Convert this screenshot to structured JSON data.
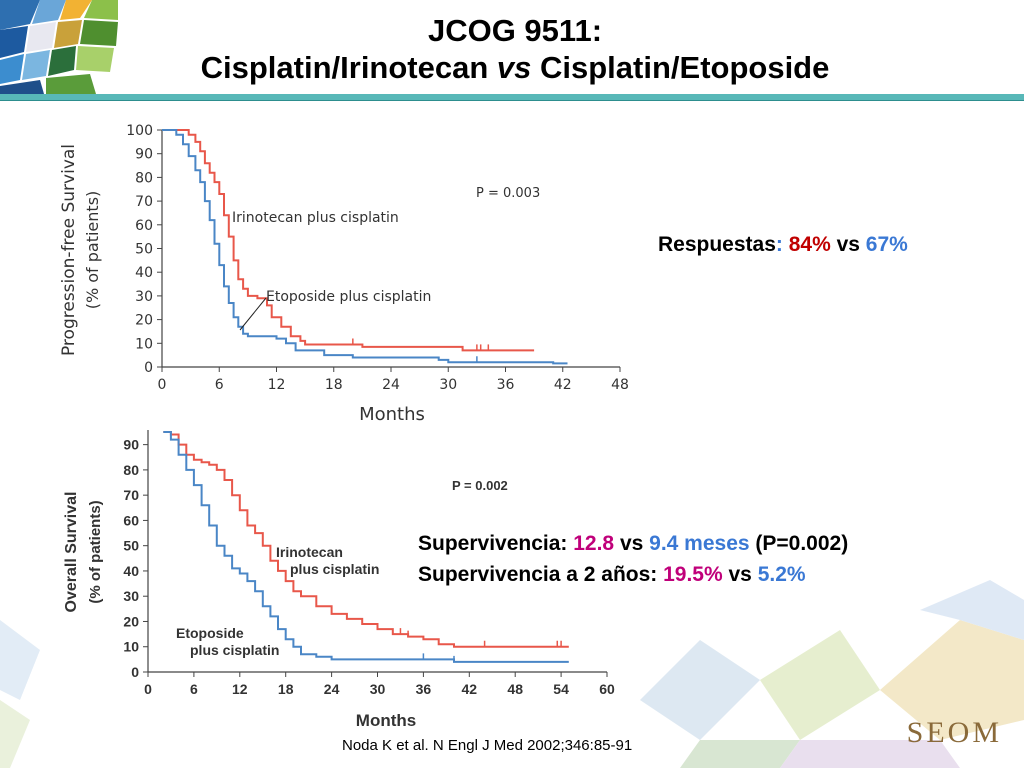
{
  "title": {
    "line1": "JCOG 9511:",
    "line2_a": "Cisplatin/Irinotecan ",
    "line2_vs": "vs",
    "line2_b": " Cisplatin/Etoposide"
  },
  "stats": {
    "respuestas": {
      "label": "Respuestas",
      "colon": ":",
      "value1": "84%",
      "vs": " vs ",
      "value2": "67%"
    },
    "supervivencia": {
      "label": "Supervivencia: ",
      "value1": "12.8",
      "vs": " vs ",
      "value2": "9.4 meses",
      "pvalue": " (P=0.002)"
    },
    "supervivencia2": {
      "label": "Supervivencia a 2 años: ",
      "value1": "19.5%",
      "vs": " vs ",
      "value2": "5.2%"
    }
  },
  "citation": "Noda K et al. N Engl J Med 2002;346:85-91",
  "logo_text": "SEOM",
  "colors": {
    "irinotecan": "#e8574a",
    "etoposide": "#4a86c6",
    "accent_teal": "#58b8b8",
    "stat_red": "#c00000",
    "stat_blue": "#3a78d4",
    "stat_magenta": "#c0007a"
  },
  "chart_data": [
    {
      "type": "line",
      "ylabel_line1": "Progression-free Survival",
      "ylabel_line2": "(% of patients)",
      "xlabel": "Months",
      "xlim": [
        0,
        48
      ],
      "ylim": [
        0,
        100
      ],
      "xticks": [
        0,
        6,
        12,
        18,
        24,
        30,
        36,
        42,
        48
      ],
      "yticks": [
        0,
        10,
        20,
        30,
        40,
        50,
        60,
        70,
        80,
        90,
        100
      ],
      "annotation_p": "P = 0.003",
      "series": [
        {
          "name": "Irinotecan plus cisplatin",
          "color": "#e8574a",
          "points": [
            [
              0,
              100
            ],
            [
              2,
              100
            ],
            [
              2.8,
              98
            ],
            [
              3.5,
              95
            ],
            [
              4,
              91
            ],
            [
              4.5,
              86
            ],
            [
              5,
              82
            ],
            [
              5.5,
              78
            ],
            [
              6,
              73
            ],
            [
              6.5,
              64
            ],
            [
              7,
              55
            ],
            [
              7.5,
              45
            ],
            [
              8,
              37
            ],
            [
              8.5,
              33
            ],
            [
              9,
              30
            ],
            [
              10,
              29
            ],
            [
              11,
              26
            ],
            [
              11.5,
              21
            ],
            [
              12.5,
              17
            ],
            [
              13.5,
              13
            ],
            [
              14.5,
              11
            ],
            [
              15,
              9.5
            ],
            [
              20,
              9.5
            ],
            [
              21,
              8.5
            ],
            [
              31,
              8.5
            ],
            [
              31.5,
              7
            ],
            [
              39,
              7
            ]
          ],
          "censor_x": [
            20,
            33,
            33.4,
            34.2
          ]
        },
        {
          "name": "Etoposide plus cisplatin",
          "color": "#4a86c6",
          "points": [
            [
              0,
              100
            ],
            [
              1.5,
              98
            ],
            [
              2.2,
              94
            ],
            [
              2.8,
              89
            ],
            [
              3.5,
              83
            ],
            [
              4,
              78
            ],
            [
              4.5,
              70
            ],
            [
              5,
              62
            ],
            [
              5.5,
              52
            ],
            [
              6,
              43
            ],
            [
              6.5,
              34
            ],
            [
              7,
              27
            ],
            [
              7.5,
              21
            ],
            [
              8,
              17
            ],
            [
              8.5,
              14
            ],
            [
              9,
              13
            ],
            [
              12,
              12
            ],
            [
              13,
              10
            ],
            [
              14,
              7
            ],
            [
              17,
              5
            ],
            [
              20,
              4
            ],
            [
              29,
              3
            ],
            [
              30,
              2
            ],
            [
              40,
              2
            ],
            [
              41,
              1.5
            ],
            [
              42.5,
              1.5
            ]
          ],
          "censor_x": [
            33
          ]
        }
      ],
      "series_label_irinotecan": "Irinotecan plus cisplatin",
      "series_label_etoposide": "Etoposide plus cisplatin"
    },
    {
      "type": "line",
      "ylabel_line1": "Overall Survival",
      "ylabel_line2": "(% of patients)",
      "xlabel": "Months",
      "xlim": [
        0,
        60
      ],
      "ylim": [
        0,
        95
      ],
      "xticks": [
        0,
        6,
        12,
        18,
        24,
        30,
        36,
        42,
        48,
        54,
        60
      ],
      "yticks": [
        0,
        10,
        20,
        30,
        40,
        50,
        60,
        70,
        80,
        90
      ],
      "annotation_p": "P = 0.002",
      "series": [
        {
          "name": "Irinotecan plus cisplatin",
          "color": "#e8574a",
          "points": [
            [
              2,
              95
            ],
            [
              3,
              94
            ],
            [
              4,
              90
            ],
            [
              5,
              86
            ],
            [
              6,
              84
            ],
            [
              7,
              83
            ],
            [
              8,
              82
            ],
            [
              9,
              80
            ],
            [
              10,
              76
            ],
            [
              11,
              70
            ],
            [
              12,
              64
            ],
            [
              13,
              58
            ],
            [
              14,
              55
            ],
            [
              15,
              50
            ],
            [
              16,
              44
            ],
            [
              17,
              40
            ],
            [
              18,
              36
            ],
            [
              19,
              32
            ],
            [
              20,
              30
            ],
            [
              22,
              26
            ],
            [
              24,
              23
            ],
            [
              26,
              21
            ],
            [
              28,
              19
            ],
            [
              30,
              17
            ],
            [
              32,
              15
            ],
            [
              34,
              14
            ],
            [
              36,
              13
            ],
            [
              38,
              11
            ],
            [
              40,
              10
            ],
            [
              50,
              10
            ],
            [
              55,
              10
            ]
          ],
          "censor_x": [
            33,
            34,
            44,
            53.5,
            54
          ]
        },
        {
          "name": "Etoposide plus cisplatin",
          "color": "#4a86c6",
          "points": [
            [
              2,
              95
            ],
            [
              3,
              92
            ],
            [
              4,
              86
            ],
            [
              5,
              80
            ],
            [
              6,
              74
            ],
            [
              7,
              66
            ],
            [
              8,
              58
            ],
            [
              9,
              50
            ],
            [
              10,
              46
            ],
            [
              11,
              41
            ],
            [
              12,
              39
            ],
            [
              13,
              36
            ],
            [
              14,
              32
            ],
            [
              15,
              26
            ],
            [
              16,
              22
            ],
            [
              17,
              17
            ],
            [
              18,
              13
            ],
            [
              19,
              10
            ],
            [
              20,
              7
            ],
            [
              22,
              6
            ],
            [
              24,
              5
            ],
            [
              30,
              5
            ],
            [
              38,
              5
            ],
            [
              40,
              4
            ],
            [
              55,
              4
            ]
          ],
          "censor_x": [
            36,
            40
          ]
        }
      ],
      "series_label_irinotecan_1": "Irinotecan",
      "series_label_irinotecan_2": "plus cisplatin",
      "series_label_etoposide_1": "Etoposide",
      "series_label_etoposide_2": "plus cisplatin"
    }
  ]
}
